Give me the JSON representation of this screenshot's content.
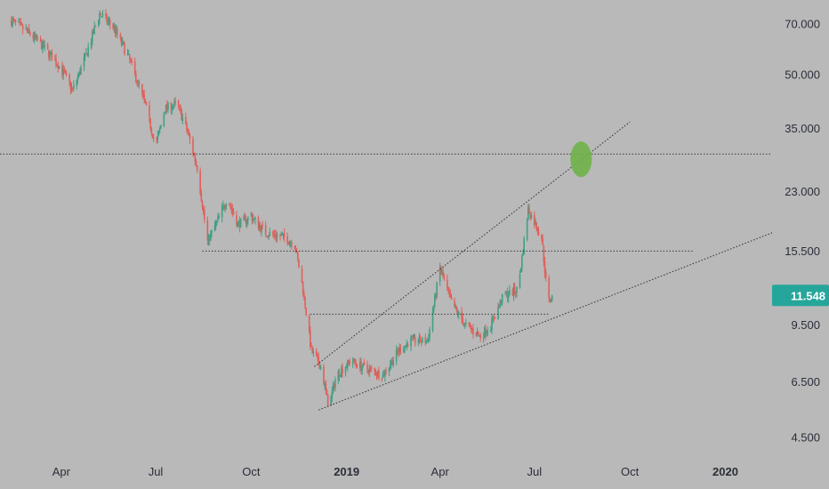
{
  "colors": {
    "background": "#b9b9b9",
    "axis_text": "#2a2e39",
    "up_candle": "#3fa085",
    "down_candle": "#e0605a",
    "price_tag": "#26a69a",
    "trendline": "#3a3a3a",
    "target_marker": "#6fb34a"
  },
  "price_axis": {
    "scale": "log",
    "tick_labels": [
      "70.000",
      "50.000",
      "35.000",
      "23.000",
      "15.500",
      "9.500",
      "6.500",
      "4.500"
    ]
  },
  "time_axis": {
    "tick_labels": [
      "Apr",
      "Jul",
      "Oct",
      "2019",
      "Apr",
      "Jul",
      "Oct",
      "2020"
    ],
    "bold_labels": [
      "2019",
      "2020"
    ]
  },
  "last_price": {
    "label": "11.548",
    "value": 11.548
  },
  "chart_data": {
    "type": "candlestick",
    "title": "",
    "xlabel": "",
    "ylabel": "",
    "yscale": "log",
    "ylim": [
      4.0,
      82.0
    ],
    "x_range": [
      "2018-02-01",
      "2020-02-15"
    ],
    "x_ticks": [
      "2018-04-01",
      "2018-07-01",
      "2018-10-01",
      "2019-01-01",
      "2019-04-01",
      "2019-07-01",
      "2019-10-01",
      "2020-01-01"
    ],
    "y_ticks": [
      70,
      50,
      35,
      23,
      15.5,
      9.5,
      6.5,
      4.5
    ],
    "grid": false,
    "legend": "none",
    "price_path": [
      [
        "2018-02-10",
        72
      ],
      [
        "2018-03-01",
        66
      ],
      [
        "2018-03-15",
        60
      ],
      [
        "2018-04-01",
        52
      ],
      [
        "2018-04-12",
        45
      ],
      [
        "2018-04-25",
        57
      ],
      [
        "2018-05-08",
        75
      ],
      [
        "2018-05-22",
        68
      ],
      [
        "2018-06-05",
        56
      ],
      [
        "2018-06-20",
        42
      ],
      [
        "2018-07-01",
        31
      ],
      [
        "2018-07-10",
        40
      ],
      [
        "2018-07-22",
        41
      ],
      [
        "2018-08-01",
        34
      ],
      [
        "2018-08-10",
        27
      ],
      [
        "2018-08-20",
        16.5
      ],
      [
        "2018-08-28",
        18.5
      ],
      [
        "2018-09-08",
        22
      ],
      [
        "2018-09-18",
        18.5
      ],
      [
        "2018-10-01",
        19.5
      ],
      [
        "2018-10-15",
        17.5
      ],
      [
        "2018-11-01",
        17
      ],
      [
        "2018-11-12",
        16.2
      ],
      [
        "2018-11-20",
        12
      ],
      [
        "2018-11-28",
        8
      ],
      [
        "2018-12-07",
        7.2
      ],
      [
        "2018-12-15",
        5.5
      ],
      [
        "2018-12-22",
        6.8
      ],
      [
        "2019-01-05",
        7.5
      ],
      [
        "2019-01-20",
        7.1
      ],
      [
        "2019-02-05",
        6.8
      ],
      [
        "2019-02-20",
        8
      ],
      [
        "2019-03-05",
        8.6
      ],
      [
        "2019-03-20",
        8.5
      ],
      [
        "2019-04-01",
        13.8
      ],
      [
        "2019-04-12",
        11
      ],
      [
        "2019-04-25",
        9.5
      ],
      [
        "2019-05-10",
        8.8
      ],
      [
        "2019-05-20",
        9.5
      ],
      [
        "2019-06-01",
        11.5
      ],
      [
        "2019-06-15",
        12
      ],
      [
        "2019-06-25",
        20.5
      ],
      [
        "2019-07-02",
        18.5
      ],
      [
        "2019-07-08",
        17
      ],
      [
        "2019-07-14",
        11
      ],
      [
        "2019-07-18",
        11.548
      ]
    ],
    "horizontal_levels": [
      {
        "price": 29.5,
        "from": "2018-02-01",
        "to": "2020-02-15"
      },
      {
        "price": 15.5,
        "from": "2018-08-15",
        "to": "2019-12-01"
      },
      {
        "price": 10.2,
        "from": "2018-11-27",
        "to": "2019-07-15"
      }
    ],
    "trendlines": [
      {
        "from": [
          "2018-12-01",
          7.2
        ],
        "to": [
          "2019-10-01",
          36.5
        ],
        "style": "dotted"
      },
      {
        "from": [
          "2018-12-05",
          5.4
        ],
        "to": [
          "2020-02-15",
          17.5
        ],
        "style": "dotted"
      }
    ],
    "target_marker": {
      "date": "2019-08-15",
      "price": 28.5
    },
    "last_price": 11.548
  }
}
